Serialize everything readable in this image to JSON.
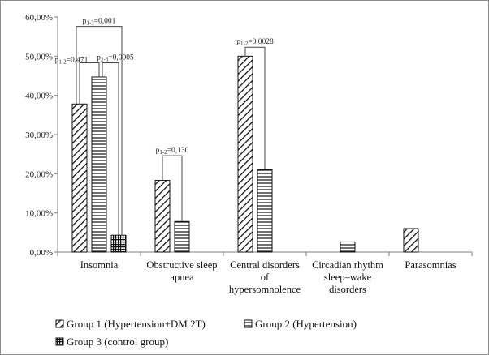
{
  "chart_data": {
    "type": "bar",
    "title": "",
    "xlabel": "",
    "ylabel": "",
    "ylim": [
      0,
      60
    ],
    "grid": false,
    "legend_position": "bottom",
    "y_ticks": [
      "0,00%",
      "10,00%",
      "20,00%",
      "30,00%",
      "40,00%",
      "50,00%",
      "60,00%"
    ],
    "categories": [
      [
        "Insomnia"
      ],
      [
        "Obstructive sleep",
        "apnea"
      ],
      [
        "Central disorders",
        "of",
        "hypersomnolence"
      ],
      [
        "Circadian rhythm",
        "sleep–wake",
        "disorders"
      ],
      [
        "Parasomnias"
      ]
    ],
    "series": [
      {
        "name": "Group 1 (Hypertension+DM 2T)",
        "values": [
          37.8,
          18.3,
          50.0,
          0,
          6.0
        ],
        "pattern": "diagonal"
      },
      {
        "name": "Group 2 (Hypertension)",
        "values": [
          44.7,
          7.8,
          21.0,
          2.6,
          0
        ],
        "pattern": "horizontal"
      },
      {
        "name": "Group 3 (control group)",
        "values": [
          4.3,
          0,
          0,
          0,
          0
        ],
        "pattern": "grid"
      }
    ],
    "annotations": [
      {
        "sub": "1-3",
        "value": "=0,001",
        "category": 0,
        "from": 0,
        "to": 2
      },
      {
        "sub": "1-2",
        "value": "=0,471",
        "category": 0,
        "from": 0,
        "to": 1
      },
      {
        "sub": "2-3",
        "value": "=0,0005",
        "category": 0,
        "from": 1,
        "to": 2
      },
      {
        "sub": "1-2",
        "value": "=0,130",
        "category": 1,
        "from": 0,
        "to": 1
      },
      {
        "sub": "1-2",
        "value": "=0,0028",
        "category": 2,
        "from": 0,
        "to": 1
      }
    ]
  }
}
